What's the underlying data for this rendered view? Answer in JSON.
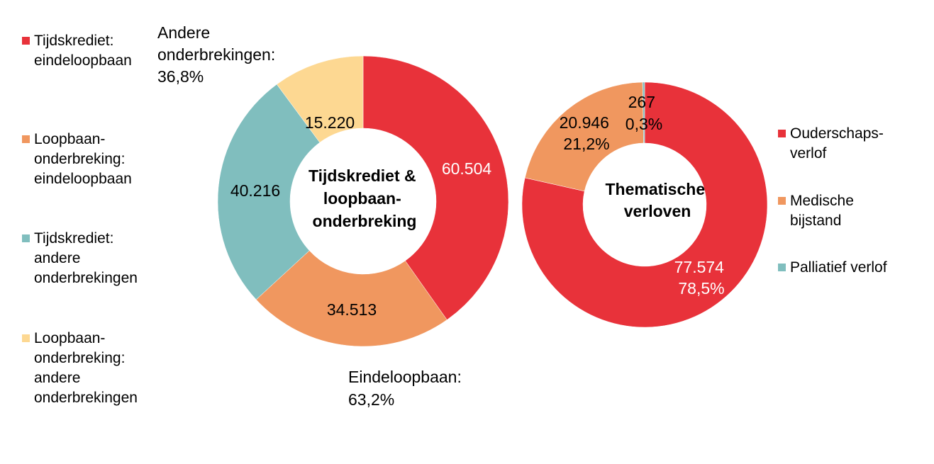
{
  "chart_data": [
    {
      "type": "pie",
      "variant": "donut",
      "title": [
        "Tijdskrediet &",
        "loopbaan-",
        "onderbreking"
      ],
      "slices": [
        {
          "name": "Tijdskrediet: eindeloopbaan",
          "value": 60504,
          "label": "60.504",
          "color": "#E8323A"
        },
        {
          "name": "Loopbaan-onderbreking: eindeloopbaan",
          "value": 34513,
          "label": "34.513",
          "color": "#F0975F"
        },
        {
          "name": "Tijdskrediet: andere onderbrekingen",
          "value": 40216,
          "label": "40.216",
          "color": "#80BEBE"
        },
        {
          "name": "Loopbaan-onderbreking: andere onderbrekingen",
          "value": 15220,
          "label": "15.220",
          "color": "#FDD892"
        }
      ],
      "legend": [
        {
          "lines": [
            "Tijdskrediet:",
            "eindeloopbaan"
          ],
          "color": "#E8323A"
        },
        {
          "lines": [
            "Loopbaan-",
            "onderbreking:",
            "eindeloopbaan"
          ],
          "color": "#F0975F"
        },
        {
          "lines": [
            "Tijdskrediet:",
            "andere",
            "onderbrekingen"
          ],
          "color": "#80BEBE"
        },
        {
          "lines": [
            "Loopbaan-",
            "onderbreking:",
            "andere",
            "onderbrekingen"
          ],
          "color": "#FDD892"
        }
      ],
      "legend_position": "left",
      "annotations": [
        {
          "lines": [
            "Andere",
            "onderbrekingen:",
            "36,8%"
          ]
        },
        {
          "lines": [
            "Eindeloopbaan:",
            "63,2%"
          ]
        }
      ]
    },
    {
      "type": "pie",
      "variant": "donut",
      "title": [
        "Thematische",
        "verloven"
      ],
      "slices": [
        {
          "name": "Ouderschapsverlof",
          "value": 77574,
          "label": [
            "77.574",
            "78,5%"
          ],
          "color": "#E8323A"
        },
        {
          "name": "Medische bijstand",
          "value": 20946,
          "label": [
            "20.946",
            "21,2%"
          ],
          "color": "#F0975F"
        },
        {
          "name": "Palliatief verlof",
          "value": 267,
          "label": [
            "267",
            "0,3%"
          ],
          "color": "#80BEBE"
        }
      ],
      "legend": [
        {
          "lines": [
            "Ouderschaps-",
            "verlof"
          ],
          "color": "#E8323A"
        },
        {
          "lines": [
            "Medische",
            "bijstand"
          ],
          "color": "#F0975F"
        },
        {
          "lines": [
            "Palliatief verlof"
          ],
          "color": "#80BEBE"
        }
      ],
      "legend_position": "right"
    }
  ]
}
